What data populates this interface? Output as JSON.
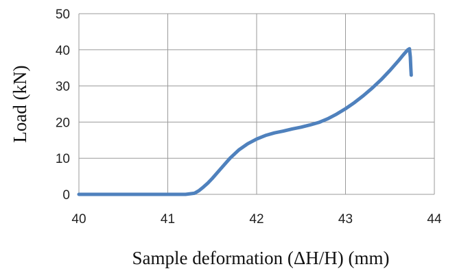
{
  "chart_data": {
    "type": "line",
    "title": "",
    "xlabel": "Sample deformation (ΔH/H) (mm)",
    "ylabel": "Load (kN)",
    "xlim": [
      40,
      44
    ],
    "ylim": [
      0,
      50
    ],
    "xticks": [
      40,
      41,
      42,
      43,
      44
    ],
    "yticks": [
      0,
      10,
      20,
      30,
      40,
      50
    ],
    "grid": true,
    "legend": "none",
    "line_color": "#4F81BD",
    "grid_color": "#9a9a9a",
    "series": [
      {
        "x": [
          40.0,
          40.5,
          41.0,
          41.2,
          41.3,
          41.35,
          41.4,
          41.45,
          41.5,
          41.6,
          41.7,
          41.8,
          41.9,
          42.0,
          42.1,
          42.2,
          42.3,
          42.4,
          42.5,
          42.6,
          42.7,
          42.8,
          42.9,
          43.0,
          43.1,
          43.2,
          43.3,
          43.4,
          43.5,
          43.6,
          43.65,
          43.7,
          43.72,
          43.73,
          43.735,
          43.74
        ],
        "y": [
          0,
          0,
          0,
          0,
          0.3,
          1.0,
          2.0,
          3.1,
          4.4,
          7.2,
          10.0,
          12.3,
          14.0,
          15.3,
          16.3,
          17.0,
          17.5,
          18.1,
          18.6,
          19.2,
          19.9,
          20.9,
          22.2,
          23.7,
          25.4,
          27.3,
          29.4,
          31.7,
          34.3,
          37.1,
          38.6,
          40.0,
          40.3,
          38.0,
          35.0,
          33.0
        ]
      }
    ]
  }
}
